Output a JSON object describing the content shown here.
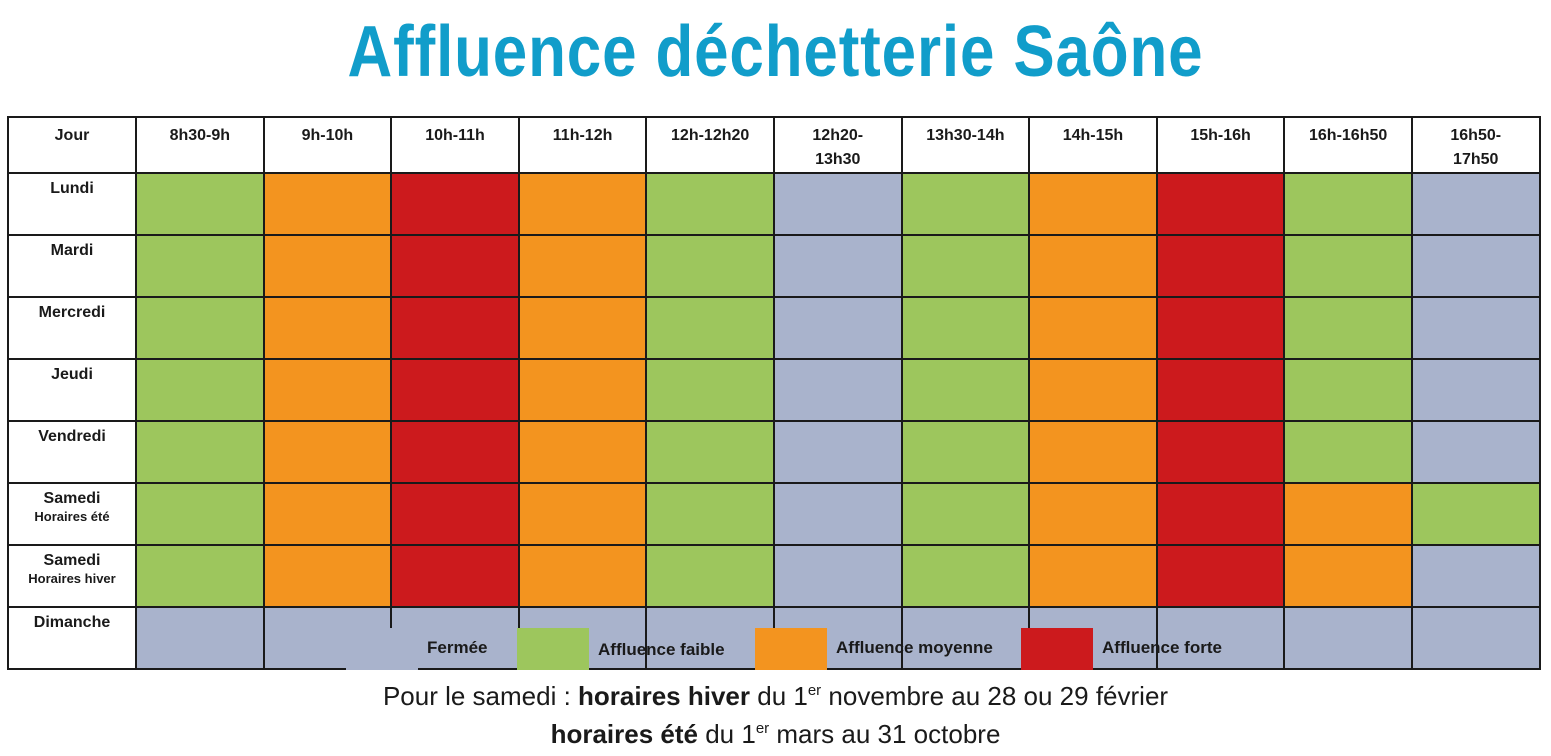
{
  "title": "Affluence déchetterie Saône",
  "colors": {
    "fermee": "#a9b3cc",
    "faible": "#9dc65d",
    "moyenne": "#f3941f",
    "forte": "#cc1a1d"
  },
  "chart_data": {
    "type": "heatmap",
    "title": "Affluence déchetterie Saône",
    "corner_header": "Jour",
    "columns": [
      "8h30-9h",
      "9h-10h",
      "10h-11h",
      "11h-12h",
      "12h-12h20",
      "12h20-13h30",
      "13h30-14h",
      "14h-15h",
      "15h-16h",
      "16h-16h50",
      "16h50-17h50"
    ],
    "column_headers": [
      [
        "8h30-9h"
      ],
      [
        "9h-10h"
      ],
      [
        "10h-11h"
      ],
      [
        "11h-12h"
      ],
      [
        "12h-12h20"
      ],
      [
        "12h20-",
        "13h30"
      ],
      [
        "13h30-14h"
      ],
      [
        "14h-15h"
      ],
      [
        "15h-16h"
      ],
      [
        "16h-16h50"
      ],
      [
        "16h50-",
        "17h50"
      ]
    ],
    "rows": [
      {
        "label": "Lundi",
        "sublabel": "",
        "values": [
          "faible",
          "moyenne",
          "forte",
          "moyenne",
          "faible",
          "fermee",
          "faible",
          "moyenne",
          "forte",
          "faible",
          "fermee"
        ]
      },
      {
        "label": "Mardi",
        "sublabel": "",
        "values": [
          "faible",
          "moyenne",
          "forte",
          "moyenne",
          "faible",
          "fermee",
          "faible",
          "moyenne",
          "forte",
          "faible",
          "fermee"
        ]
      },
      {
        "label": "Mercredi",
        "sublabel": "",
        "values": [
          "faible",
          "moyenne",
          "forte",
          "moyenne",
          "faible",
          "fermee",
          "faible",
          "moyenne",
          "forte",
          "faible",
          "fermee"
        ]
      },
      {
        "label": "Jeudi",
        "sublabel": "",
        "values": [
          "faible",
          "moyenne",
          "forte",
          "moyenne",
          "faible",
          "fermee",
          "faible",
          "moyenne",
          "forte",
          "faible",
          "fermee"
        ]
      },
      {
        "label": "Vendredi",
        "sublabel": "",
        "values": [
          "faible",
          "moyenne",
          "forte",
          "moyenne",
          "faible",
          "fermee",
          "faible",
          "moyenne",
          "forte",
          "faible",
          "fermee"
        ]
      },
      {
        "label": "Samedi",
        "sublabel": "Horaires été",
        "values": [
          "faible",
          "moyenne",
          "forte",
          "moyenne",
          "faible",
          "fermee",
          "faible",
          "moyenne",
          "forte",
          "moyenne",
          "faible"
        ]
      },
      {
        "label": "Samedi",
        "sublabel": "Horaires hiver",
        "values": [
          "faible",
          "moyenne",
          "forte",
          "moyenne",
          "faible",
          "fermee",
          "faible",
          "moyenne",
          "forte",
          "moyenne",
          "fermee"
        ]
      },
      {
        "label": "Dimanche",
        "sublabel": "",
        "values": [
          "fermee",
          "fermee",
          "fermee",
          "fermee",
          "fermee",
          "fermee",
          "fermee",
          "fermee",
          "fermee",
          "fermee",
          "fermee"
        ]
      }
    ],
    "legend": [
      {
        "key": "fermee",
        "label": "Fermée"
      },
      {
        "key": "faible",
        "label": "Affluence faible"
      },
      {
        "key": "moyenne",
        "label": "Affluence moyenne"
      },
      {
        "key": "forte",
        "label": "Affluence forte"
      }
    ]
  },
  "note": {
    "line1_prefix": "Pour le samedi : ",
    "line1_bold": "horaires hiver",
    "line1_mid": " du 1",
    "line1_sup": "er",
    "line1_suffix": " novembre au 28 ou 29 février",
    "line2_bold": "horaires été",
    "line2_mid": " du 1",
    "line2_sup": "er",
    "line2_suffix": " mars au 31 octobre"
  }
}
